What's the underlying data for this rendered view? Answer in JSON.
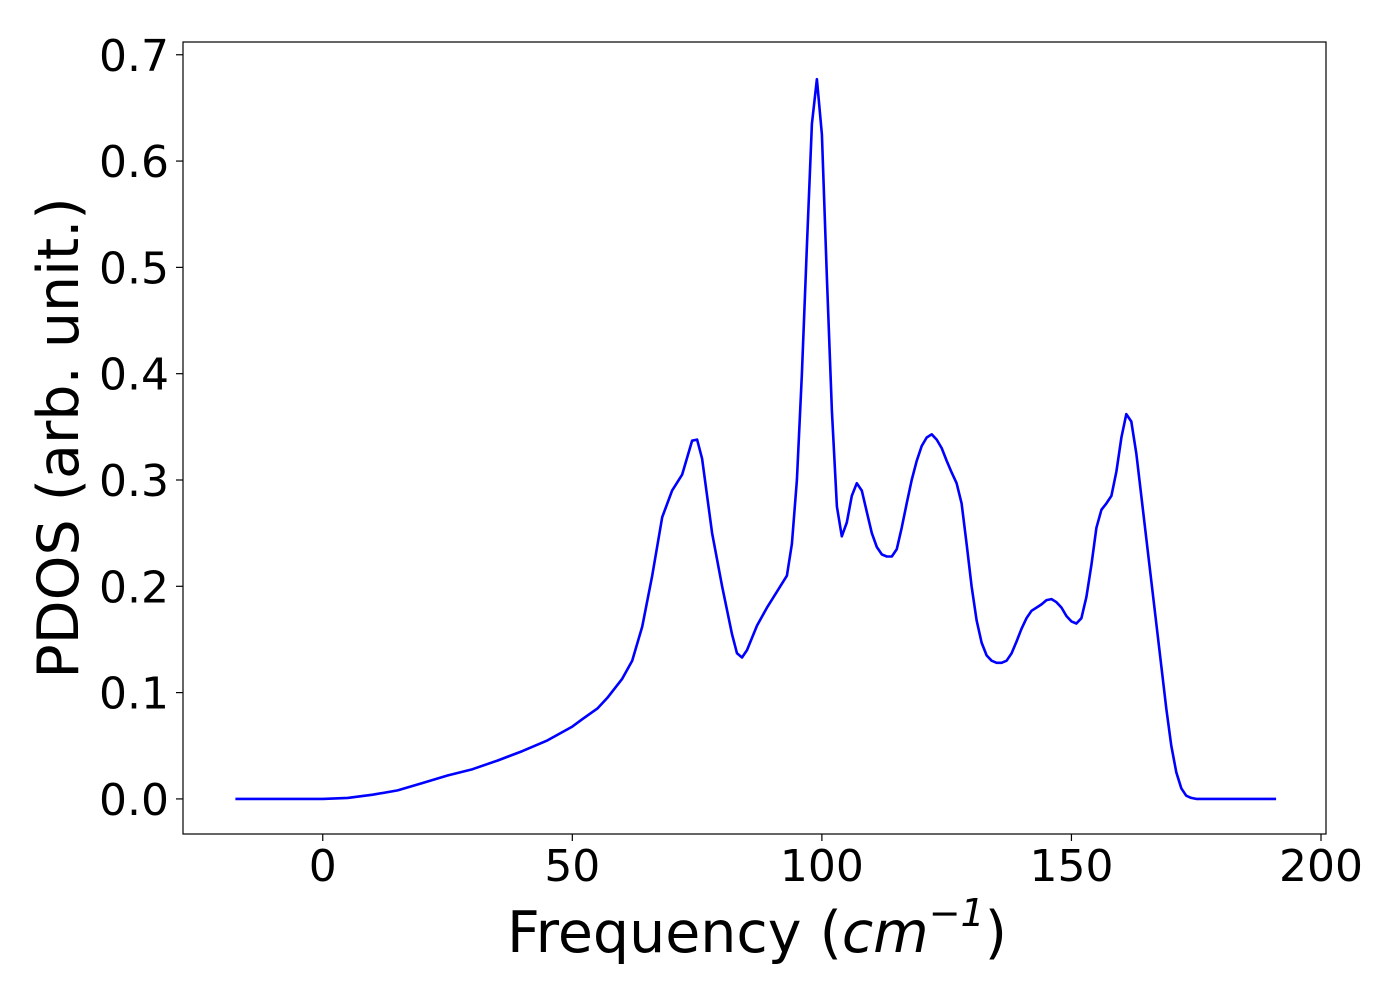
{
  "chart_data": {
    "type": "line",
    "title": "",
    "xlabel_main": "Frequency (",
    "xlabel_unit_base": "cm",
    "xlabel_unit_exp": "−1",
    "xlabel_close": ")",
    "ylabel": "PDOS (arb. unit.)",
    "xlim": [
      -28,
      201
    ],
    "ylim": [
      -0.033,
      0.712
    ],
    "xticks": [
      0,
      50,
      100,
      150,
      200
    ],
    "xtick_labels": [
      "0",
      "50",
      "100",
      "150",
      "200"
    ],
    "yticks": [
      0.0,
      0.1,
      0.2,
      0.3,
      0.4,
      0.5,
      0.6,
      0.7
    ],
    "ytick_labels": [
      "0.0",
      "0.1",
      "0.2",
      "0.3",
      "0.4",
      "0.5",
      "0.6",
      "0.7"
    ],
    "grid": false,
    "line_color": "#0000ff",
    "series": [
      {
        "x": [
          -17.5,
          -10,
          0,
          5,
          10,
          15,
          20,
          25,
          30,
          35,
          40,
          45,
          50,
          52,
          55,
          57,
          60,
          62,
          64,
          66,
          68,
          70,
          72,
          74,
          75,
          76,
          78,
          80,
          82,
          83,
          84,
          85,
          87,
          89,
          91,
          93,
          94,
          95,
          96,
          97,
          98,
          99,
          100,
          101,
          102,
          103,
          104,
          105,
          106,
          107,
          108,
          109,
          110,
          111,
          112,
          113,
          114,
          115,
          116,
          117,
          118,
          119,
          120,
          121,
          122,
          123,
          124,
          125,
          126,
          127,
          128,
          129,
          130,
          131,
          132,
          133,
          134,
          135,
          136,
          137,
          138,
          139,
          140,
          141,
          142,
          143,
          144,
          145,
          146,
          147,
          148,
          149,
          150,
          151,
          152,
          153,
          154,
          155,
          156,
          157,
          158,
          159,
          160,
          161,
          162,
          163,
          164,
          165,
          166,
          167,
          168,
          169,
          170,
          171,
          172,
          173,
          174,
          175,
          176,
          177,
          178,
          180,
          185,
          190,
          191
        ],
        "y": [
          0.0,
          0.0,
          0.0,
          0.001,
          0.004,
          0.008,
          0.015,
          0.022,
          0.028,
          0.036,
          0.045,
          0.055,
          0.068,
          0.075,
          0.085,
          0.095,
          0.113,
          0.13,
          0.162,
          0.21,
          0.265,
          0.29,
          0.305,
          0.337,
          0.338,
          0.32,
          0.25,
          0.2,
          0.155,
          0.137,
          0.133,
          0.14,
          0.163,
          0.18,
          0.195,
          0.21,
          0.24,
          0.3,
          0.4,
          0.52,
          0.635,
          0.677,
          0.625,
          0.49,
          0.365,
          0.275,
          0.247,
          0.26,
          0.285,
          0.297,
          0.29,
          0.27,
          0.25,
          0.237,
          0.23,
          0.228,
          0.228,
          0.235,
          0.255,
          0.278,
          0.3,
          0.318,
          0.332,
          0.34,
          0.343,
          0.338,
          0.33,
          0.318,
          0.307,
          0.297,
          0.278,
          0.24,
          0.2,
          0.168,
          0.147,
          0.135,
          0.13,
          0.128,
          0.128,
          0.13,
          0.137,
          0.148,
          0.16,
          0.17,
          0.177,
          0.18,
          0.183,
          0.187,
          0.188,
          0.185,
          0.18,
          0.172,
          0.167,
          0.165,
          0.17,
          0.19,
          0.22,
          0.255,
          0.272,
          0.278,
          0.285,
          0.308,
          0.34,
          0.362,
          0.355,
          0.325,
          0.285,
          0.245,
          0.205,
          0.165,
          0.125,
          0.085,
          0.05,
          0.025,
          0.01,
          0.003,
          0.001,
          0.0,
          0.0,
          0.0,
          0.0,
          0.0,
          0.0,
          0.0,
          0.0
        ]
      }
    ]
  }
}
